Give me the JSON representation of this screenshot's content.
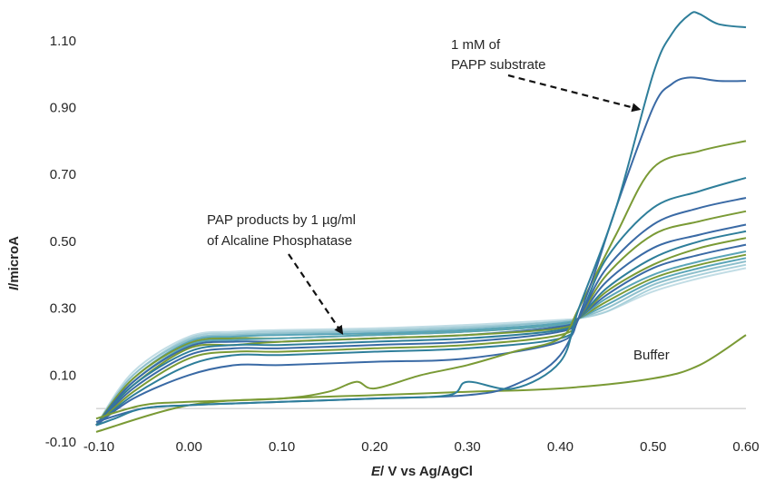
{
  "chart_data": {
    "type": "line",
    "title": "",
    "xlabel": "E/ V vs Ag/AgCl",
    "xlabel_italic": "E",
    "xlabel_rest": "/ V vs Ag/AgCl",
    "ylabel": "I/microA",
    "ylabel_italic": "I",
    "ylabel_rest": "/microA",
    "xlim": [
      -0.1,
      0.6
    ],
    "ylim": [
      -0.1,
      1.2
    ],
    "x_ticks": [
      -0.1,
      0.0,
      0.1,
      0.2,
      0.3,
      0.4,
      0.5,
      0.6
    ],
    "x_tick_labels": [
      "-0.10",
      "0.00",
      "0.10",
      "0.20",
      "0.30",
      "0.40",
      "0.50",
      "0.60"
    ],
    "y_ticks": [
      -0.1,
      0.1,
      0.3,
      0.5,
      0.7,
      0.9,
      1.1
    ],
    "y_tick_labels": [
      "-0.10",
      "0.10",
      "0.30",
      "0.50",
      "0.70",
      "0.90",
      "1.10"
    ],
    "grid": false,
    "legend": "none",
    "series_color_palette": [
      "#2e7e9a",
      "#7a9a35",
      "#3a6aa5",
      "#5aa5b8"
    ],
    "annotations": [
      {
        "id": "papp",
        "lines": [
          "1 mM of",
          "PAPP substrate"
        ],
        "arrow_to": [
          0.485,
          0.895
        ]
      },
      {
        "id": "pap",
        "lines": [
          "PAP products by 1 µg/ml",
          "of Alcaline Phosphatase"
        ],
        "arrow_to": [
          0.165,
          0.225
        ]
      },
      {
        "id": "buffer",
        "lines": [
          "Buffer"
        ],
        "arrow_to": null
      }
    ],
    "series": [
      {
        "color": "#2e7e9a",
        "x": [
          -0.1,
          -0.08,
          -0.05,
          0.0,
          0.1,
          0.2,
          0.28,
          0.3,
          0.35,
          0.4,
          0.42,
          0.46,
          0.5,
          0.52,
          0.54,
          0.55,
          0.57,
          0.6
        ],
        "y": [
          -0.05,
          -0.03,
          0.0,
          0.01,
          0.02,
          0.03,
          0.04,
          0.08,
          0.06,
          0.14,
          0.3,
          0.6,
          1.0,
          1.12,
          1.18,
          1.18,
          1.15,
          1.14
        ]
      },
      {
        "color": "#3a6aa5",
        "x": [
          -0.1,
          -0.05,
          0.0,
          0.1,
          0.2,
          0.3,
          0.35,
          0.4,
          0.43,
          0.46,
          0.5,
          0.52,
          0.54,
          0.57,
          0.6
        ],
        "y": [
          -0.04,
          0.0,
          0.01,
          0.02,
          0.03,
          0.04,
          0.07,
          0.16,
          0.35,
          0.6,
          0.9,
          0.97,
          0.99,
          0.98,
          0.98
        ]
      },
      {
        "color": "#7a9a35",
        "x": [
          -0.1,
          -0.05,
          0.0,
          0.1,
          0.15,
          0.18,
          0.2,
          0.25,
          0.3,
          0.35,
          0.4,
          0.42,
          0.46,
          0.5,
          0.55,
          0.6
        ],
        "y": [
          -0.03,
          0.01,
          0.02,
          0.03,
          0.05,
          0.08,
          0.06,
          0.1,
          0.13,
          0.17,
          0.21,
          0.3,
          0.52,
          0.72,
          0.77,
          0.8
        ]
      },
      {
        "color": "#7a9a35",
        "x": [
          -0.1,
          0.0,
          0.1,
          0.2,
          0.3,
          0.4,
          0.5,
          0.55,
          0.6
        ],
        "y": [
          -0.07,
          0.01,
          0.03,
          0.04,
          0.05,
          0.06,
          0.09,
          0.13,
          0.22
        ]
      },
      {
        "color": "#3a6aa5",
        "x": [
          -0.1,
          -0.06,
          0.0,
          0.05,
          0.1,
          0.2,
          0.3,
          0.4,
          0.42,
          0.45,
          0.5,
          0.55,
          0.6
        ],
        "y": [
          -0.05,
          0.03,
          0.1,
          0.13,
          0.13,
          0.14,
          0.15,
          0.2,
          0.27,
          0.42,
          0.55,
          0.6,
          0.63
        ]
      },
      {
        "color": "#2e7e9a",
        "x": [
          -0.1,
          -0.06,
          0.0,
          0.05,
          0.1,
          0.2,
          0.3,
          0.4,
          0.42,
          0.45,
          0.5,
          0.55,
          0.6
        ],
        "y": [
          -0.05,
          0.04,
          0.13,
          0.16,
          0.16,
          0.17,
          0.18,
          0.21,
          0.27,
          0.45,
          0.6,
          0.65,
          0.69
        ]
      },
      {
        "color": "#7a9a35",
        "x": [
          -0.1,
          -0.06,
          0.0,
          0.05,
          0.1,
          0.2,
          0.3,
          0.4,
          0.42,
          0.45,
          0.5,
          0.55,
          0.6
        ],
        "y": [
          -0.05,
          0.05,
          0.15,
          0.17,
          0.17,
          0.18,
          0.19,
          0.22,
          0.27,
          0.4,
          0.52,
          0.56,
          0.59
        ]
      },
      {
        "color": "#3a6aa5",
        "x": [
          -0.1,
          -0.06,
          0.0,
          0.05,
          0.1,
          0.2,
          0.3,
          0.4,
          0.42,
          0.45,
          0.5,
          0.55,
          0.6
        ],
        "y": [
          -0.05,
          0.06,
          0.16,
          0.18,
          0.18,
          0.19,
          0.2,
          0.23,
          0.27,
          0.38,
          0.48,
          0.52,
          0.55
        ]
      },
      {
        "color": "#2e7e9a",
        "x": [
          -0.1,
          -0.06,
          0.0,
          0.05,
          0.1,
          0.2,
          0.3,
          0.4,
          0.42,
          0.45,
          0.5,
          0.55,
          0.6
        ],
        "y": [
          -0.05,
          0.07,
          0.17,
          0.19,
          0.19,
          0.2,
          0.21,
          0.235,
          0.27,
          0.36,
          0.45,
          0.5,
          0.53
        ]
      },
      {
        "color": "#7a9a35",
        "x": [
          -0.1,
          -0.06,
          0.0,
          0.05,
          0.1,
          0.2,
          0.3,
          0.4,
          0.42,
          0.45,
          0.5,
          0.55,
          0.6
        ],
        "y": [
          -0.05,
          0.07,
          0.18,
          0.19,
          0.2,
          0.21,
          0.22,
          0.24,
          0.27,
          0.35,
          0.43,
          0.48,
          0.51
        ]
      },
      {
        "color": "#3a6aa5",
        "x": [
          -0.1,
          -0.06,
          0.0,
          0.05,
          0.1,
          0.2,
          0.3,
          0.4,
          0.42,
          0.45,
          0.5,
          0.55,
          0.6
        ],
        "y": [
          -0.05,
          0.08,
          0.185,
          0.2,
          0.2,
          0.21,
          0.22,
          0.245,
          0.27,
          0.34,
          0.42,
          0.46,
          0.49
        ]
      },
      {
        "color": "#5aa5b8",
        "x": [
          -0.1,
          -0.06,
          0.0,
          0.05,
          0.1,
          0.2,
          0.3,
          0.4,
          0.42,
          0.45,
          0.5,
          0.55,
          0.6
        ],
        "y": [
          -0.05,
          0.08,
          0.19,
          0.205,
          0.21,
          0.22,
          0.23,
          0.25,
          0.27,
          0.33,
          0.4,
          0.44,
          0.47
        ]
      },
      {
        "color": "#7a9a35",
        "x": [
          -0.1,
          -0.06,
          0.0,
          0.05,
          0.1,
          0.2,
          0.3,
          0.4,
          0.42,
          0.45,
          0.5,
          0.55,
          0.6
        ],
        "y": [
          -0.05,
          0.09,
          0.195,
          0.21,
          0.21,
          0.22,
          0.23,
          0.25,
          0.27,
          0.32,
          0.39,
          0.43,
          0.46
        ]
      },
      {
        "color": "#5aa5b8",
        "x": [
          -0.1,
          -0.06,
          0.0,
          0.05,
          0.1,
          0.2,
          0.3,
          0.4,
          0.42,
          0.45,
          0.5,
          0.55,
          0.6
        ],
        "y": [
          -0.05,
          0.09,
          0.2,
          0.215,
          0.22,
          0.225,
          0.235,
          0.255,
          0.27,
          0.31,
          0.38,
          0.42,
          0.45
        ]
      },
      {
        "color": "#8fc0cc",
        "x": [
          -0.1,
          -0.06,
          0.0,
          0.05,
          0.1,
          0.2,
          0.3,
          0.4,
          0.42,
          0.45,
          0.5,
          0.55,
          0.6
        ],
        "y": [
          -0.05,
          0.1,
          0.205,
          0.22,
          0.225,
          0.23,
          0.24,
          0.26,
          0.27,
          0.3,
          0.37,
          0.41,
          0.44
        ]
      },
      {
        "color": "#a9d0da",
        "x": [
          -0.1,
          -0.06,
          0.0,
          0.05,
          0.1,
          0.2,
          0.3,
          0.4,
          0.42,
          0.45,
          0.5,
          0.55,
          0.6
        ],
        "y": [
          -0.05,
          0.1,
          0.21,
          0.225,
          0.23,
          0.235,
          0.245,
          0.26,
          0.27,
          0.29,
          0.36,
          0.4,
          0.43
        ]
      },
      {
        "color": "#c2dde5",
        "x": [
          -0.1,
          -0.06,
          0.0,
          0.05,
          0.1,
          0.2,
          0.3,
          0.4,
          0.42,
          0.45,
          0.5,
          0.55,
          0.6
        ],
        "y": [
          -0.05,
          0.11,
          0.215,
          0.23,
          0.235,
          0.24,
          0.25,
          0.265,
          0.27,
          0.29,
          0.35,
          0.39,
          0.42
        ]
      }
    ]
  }
}
